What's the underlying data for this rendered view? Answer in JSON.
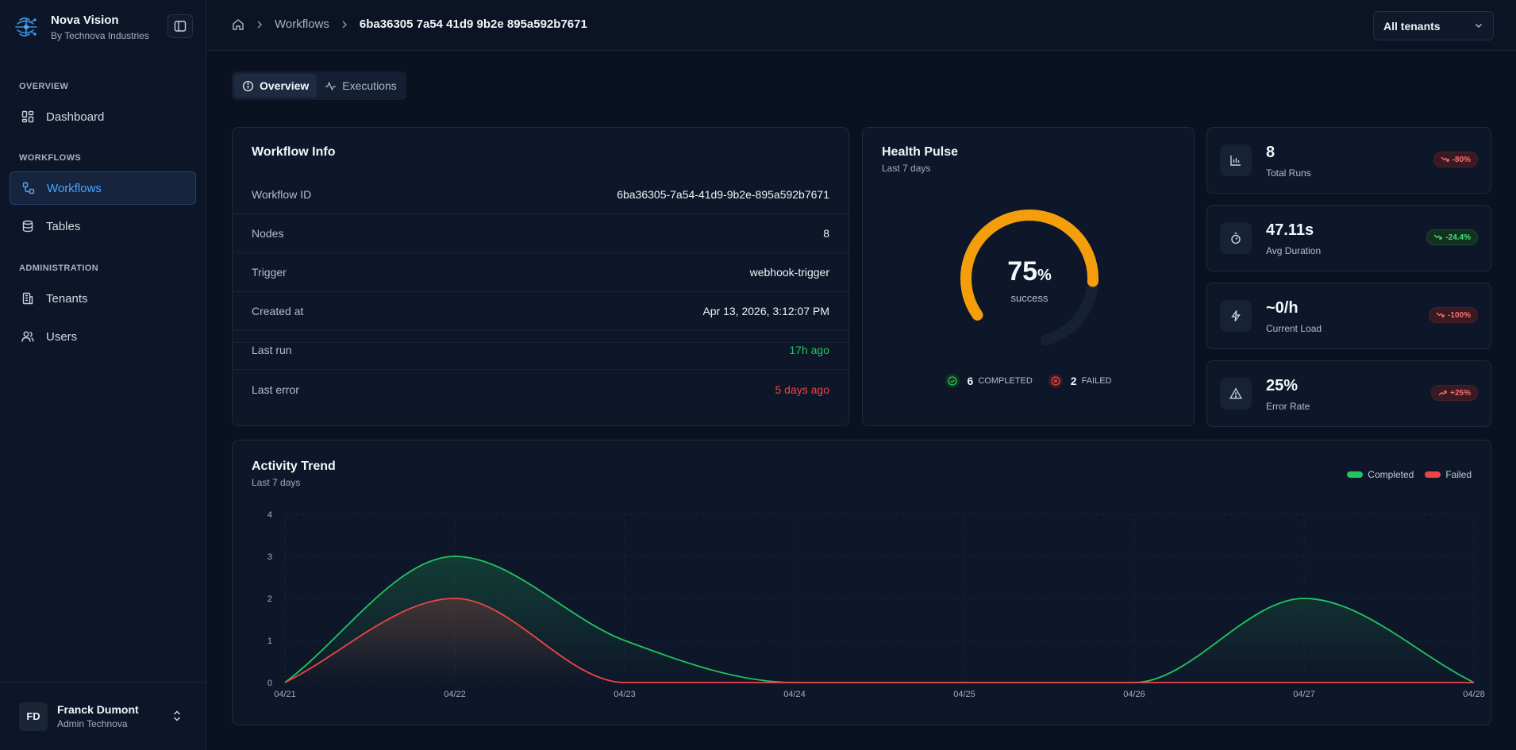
{
  "brand": {
    "title": "Nova Vision",
    "subtitle": "By Technova Industries"
  },
  "sidebar": {
    "sections": [
      {
        "label": "OVERVIEW"
      },
      {
        "label": "WORKFLOWS"
      },
      {
        "label": "ADMINISTRATION"
      }
    ],
    "items": [
      {
        "label": "Dashboard",
        "icon": "dashboard-icon"
      },
      {
        "label": "Workflows",
        "icon": "workflow-icon",
        "active": true
      },
      {
        "label": "Tables",
        "icon": "database-icon"
      },
      {
        "label": "Tenants",
        "icon": "building-icon"
      },
      {
        "label": "Users",
        "icon": "users-icon"
      }
    ]
  },
  "user": {
    "initials": "FD",
    "name": "Franck Dumont",
    "role": "Admin Technova"
  },
  "breadcrumb": {
    "items": [
      "Workflows",
      "6ba36305 7a54 41d9 9b2e 895a592b7671"
    ]
  },
  "tenant_select": {
    "value": "All tenants"
  },
  "tabs": [
    {
      "label": "Overview",
      "active": true
    },
    {
      "label": "Executions"
    }
  ],
  "workflow_info": {
    "title": "Workflow Info",
    "rows": [
      {
        "label": "Workflow ID",
        "value": "6ba36305-7a54-41d9-9b2e-895a592b7671"
      },
      {
        "label": "Nodes",
        "value": "8"
      },
      {
        "label": "Trigger",
        "value": "webhook-trigger"
      },
      {
        "label": "Created at",
        "value": "Apr 13, 2026, 3:12:07 PM"
      },
      {
        "label": "Last run",
        "value": "17h ago"
      },
      {
        "label": "Last error",
        "value": "5 days ago"
      }
    ]
  },
  "health": {
    "title": "Health Pulse",
    "subtitle": "Last 7 days",
    "percent": "75",
    "percent_unit": "%",
    "success_fraction": 0.75,
    "label": "success",
    "completed_count": "6",
    "completed_label": "COMPLETED",
    "failed_count": "2",
    "failed_label": "FAILED",
    "colors": {
      "arc": "#f59e0b",
      "track": "#162131"
    }
  },
  "stats": [
    {
      "value": "8",
      "label": "Total Runs",
      "badge": "-80%",
      "trend": "down",
      "tone": "bad",
      "icon": "bar-chart-icon"
    },
    {
      "value": "47.11s",
      "label": "Avg Duration",
      "badge": "-24.4%",
      "trend": "down",
      "tone": "good",
      "icon": "timer-icon"
    },
    {
      "value": "~0/h",
      "label": "Current Load",
      "badge": "-100%",
      "trend": "down",
      "tone": "bad",
      "icon": "bolt-icon"
    },
    {
      "value": "25%",
      "label": "Error Rate",
      "badge": "+25%",
      "trend": "up",
      "tone": "bad",
      "icon": "warning-icon"
    }
  ],
  "activity": {
    "title": "Activity Trend",
    "subtitle": "Last 7 days",
    "legend": [
      "Completed",
      "Failed"
    ]
  },
  "chart_data": {
    "type": "area",
    "categories": [
      "04/21",
      "04/22",
      "04/23",
      "04/24",
      "04/25",
      "04/26",
      "04/27",
      "04/28"
    ],
    "series": [
      {
        "name": "Completed",
        "values": [
          0,
          3,
          1,
          0,
          0,
          0,
          2,
          0
        ],
        "color": "#22c55e"
      },
      {
        "name": "Failed",
        "values": [
          0,
          2,
          0,
          0,
          0,
          0,
          0,
          0
        ],
        "color": "#ef4444"
      }
    ],
    "title": "Activity Trend",
    "ylim": [
      0,
      4
    ],
    "yticks": [
      0,
      1,
      2,
      3,
      4
    ],
    "grid": true,
    "legend_position": "top-right"
  }
}
